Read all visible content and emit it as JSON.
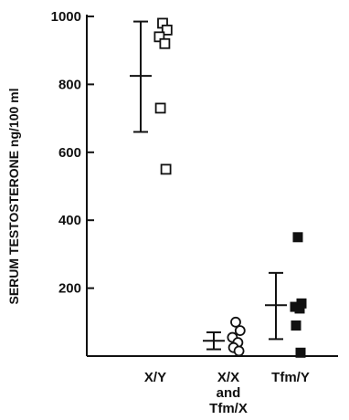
{
  "chart_data": {
    "type": "scatter",
    "ylabel": "SERUM TESTOSTERONE ng/100 ml",
    "ylim": [
      0,
      1000
    ],
    "yticks": [
      200,
      400,
      600,
      800,
      1000
    ],
    "categories": [
      {
        "label_lines": [
          "X/Y"
        ]
      },
      {
        "label_lines": [
          "X/X",
          "and",
          "Tfm/X"
        ]
      },
      {
        "label_lines": [
          "Tfm/Y"
        ]
      }
    ],
    "series": [
      {
        "category": "X/Y",
        "marker": "open-square",
        "values": [
          980,
          960,
          940,
          920,
          730,
          550
        ],
        "mean": 825,
        "error_low": 660,
        "error_high": 985
      },
      {
        "category": "X/X and Tfm/X",
        "marker": "open-circle",
        "values": [
          100,
          75,
          55,
          40,
          25,
          15
        ],
        "mean": 45,
        "error_low": 20,
        "error_high": 70
      },
      {
        "category": "Tfm/Y",
        "marker": "filled-square",
        "values": [
          350,
          155,
          145,
          140,
          90,
          10
        ],
        "mean": 150,
        "error_low": 50,
        "error_high": 245
      }
    ]
  }
}
